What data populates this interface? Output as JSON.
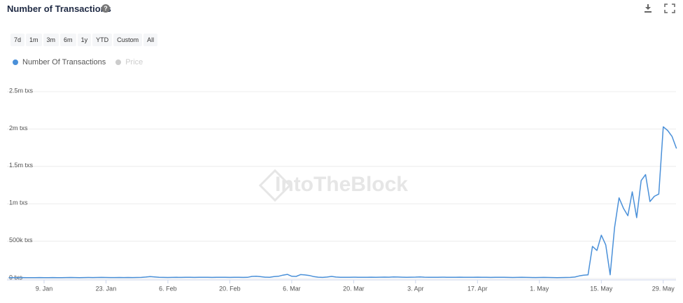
{
  "chart_data": {
    "type": "line",
    "title": "Number of Transactions",
    "range_buttons": [
      "7d",
      "1m",
      "3m",
      "6m",
      "1y",
      "YTD",
      "Custom",
      "All"
    ],
    "watermark": "IntoTheBlock",
    "hidden_series": [
      {
        "name": "Price",
        "color": "#cccccc"
      }
    ],
    "categories": [
      null,
      null,
      null,
      null,
      null,
      null,
      null,
      null,
      "9. Jan",
      null,
      null,
      null,
      null,
      null,
      null,
      null,
      null,
      null,
      null,
      null,
      null,
      null,
      "23. Jan",
      null,
      null,
      null,
      null,
      null,
      null,
      null,
      null,
      null,
      null,
      null,
      null,
      null,
      "6. Feb",
      null,
      null,
      null,
      null,
      null,
      null,
      null,
      null,
      null,
      null,
      null,
      null,
      null,
      "20. Feb",
      null,
      null,
      null,
      null,
      null,
      null,
      null,
      null,
      null,
      null,
      null,
      null,
      null,
      "6. Mar",
      null,
      null,
      null,
      null,
      null,
      null,
      null,
      null,
      null,
      null,
      null,
      null,
      null,
      "20. Mar",
      null,
      null,
      null,
      null,
      null,
      null,
      null,
      null,
      null,
      null,
      null,
      null,
      null,
      "3. Apr",
      null,
      null,
      null,
      null,
      null,
      null,
      null,
      null,
      null,
      null,
      null,
      null,
      null,
      "17. Apr",
      null,
      null,
      null,
      null,
      null,
      null,
      null,
      null,
      null,
      null,
      null,
      null,
      null,
      "1. May",
      null,
      null,
      null,
      null,
      null,
      null,
      null,
      null,
      null,
      null,
      null,
      null,
      null,
      "15. May",
      null,
      null,
      null,
      null,
      null,
      null,
      null,
      null,
      null,
      null,
      null,
      null,
      null,
      "29. May",
      null,
      null,
      null
    ],
    "series": [
      {
        "name": "Number Of Transactions",
        "color": "#4a90d9",
        "values": [
          12000,
          11000,
          12000,
          13000,
          12000,
          11000,
          12000,
          13000,
          12000,
          12000,
          13000,
          12000,
          12000,
          13000,
          14000,
          13000,
          12000,
          13000,
          14000,
          13000,
          14000,
          15000,
          14000,
          13000,
          13000,
          14000,
          13000,
          14000,
          13000,
          14000,
          15000,
          20000,
          26000,
          22000,
          16000,
          15000,
          14000,
          15000,
          16000,
          15000,
          16000,
          16000,
          15000,
          16000,
          17000,
          16000,
          15000,
          16000,
          17000,
          16000,
          15000,
          16000,
          17000,
          15000,
          16000,
          28000,
          30000,
          24000,
          18000,
          17000,
          25000,
          30000,
          45000,
          55000,
          30000,
          28000,
          52000,
          48000,
          40000,
          25000,
          18000,
          15000,
          20000,
          28000,
          20000,
          17000,
          16000,
          17000,
          18000,
          17000,
          16000,
          17000,
          18000,
          17000,
          18000,
          19000,
          18000,
          21000,
          20000,
          18000,
          17000,
          18000,
          19000,
          22000,
          18000,
          17000,
          16000,
          17000,
          18000,
          17000,
          16000,
          17000,
          18000,
          17000,
          16000,
          17000,
          18000,
          17000,
          16000,
          15000,
          16000,
          17000,
          16000,
          15000,
          14000,
          15000,
          16000,
          15000,
          14000,
          13000,
          14000,
          15000,
          14000,
          13000,
          12000,
          13000,
          14000,
          15000,
          20000,
          35000,
          45000,
          50000,
          430000,
          375000,
          580000,
          450000,
          50000,
          680000,
          1080000,
          940000,
          840000,
          1160000,
          815000,
          1310000,
          1390000,
          1030000,
          1100000,
          1130000,
          2030000,
          1980000,
          1900000,
          1740000
        ]
      }
    ],
    "ylim": [
      0,
      2500000
    ],
    "yticks": [
      {
        "value": 0,
        "label": "0 txs"
      },
      {
        "value": 500000,
        "label": "500k txs"
      },
      {
        "value": 1000000,
        "label": "1m txs"
      },
      {
        "value": 1500000,
        "label": "1.5m txs"
      },
      {
        "value": 2000000,
        "label": "2m txs"
      },
      {
        "value": 2500000,
        "label": "2.5m txs"
      }
    ],
    "grid": true
  }
}
